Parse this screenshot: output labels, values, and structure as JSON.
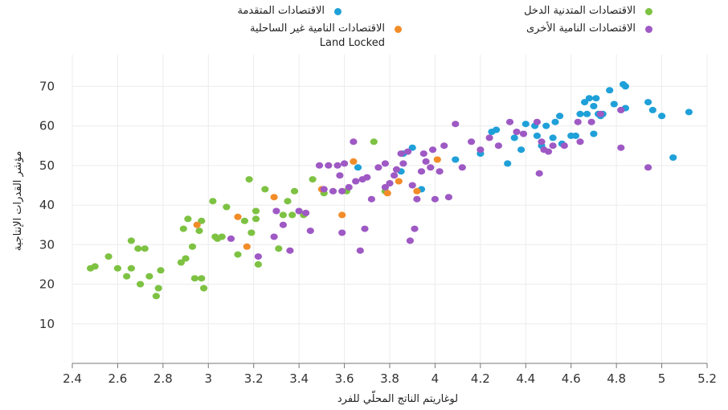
{
  "colors": {
    "advanced": "#1fa0d8",
    "lowincome": "#7dc242",
    "landlocked": "#f28c28",
    "other": "#9e59c4"
  },
  "legend": [
    {
      "key": "advanced",
      "label": "الاقتصادات المتقدمة",
      "color": "#1fa0d8"
    },
    {
      "key": "lowincome",
      "label": "الاقتصادات المتدنية الدخل",
      "color": "#7dc242"
    },
    {
      "key": "landlocked",
      "label": "الاقتصادات النامية غير الساحلية\nLand Locked",
      "color": "#f28c28"
    },
    {
      "key": "other",
      "label": "الاقتصادات النامية الأخرى",
      "color": "#9e59c4"
    }
  ],
  "chart_data": {
    "type": "scatter",
    "xlabel": "لوغاريتم الناتج المحلّي للفرد",
    "ylabel": "مؤشر القدرات الإنتاجية",
    "xlim": [
      2.4,
      5.2
    ],
    "ylim": [
      0,
      78
    ],
    "xticks": [
      "2.4",
      "2.6",
      "2.8",
      "3",
      "3.2",
      "3.4",
      "3.6",
      "3.8",
      "4",
      "4.2",
      "4.4",
      "4.6",
      "4.8",
      "5",
      "5.2"
    ],
    "yticks": [
      "10",
      "20",
      "30",
      "40",
      "50",
      "60",
      "70"
    ],
    "grid": true,
    "series": [
      {
        "name": "الاقتصادات المتقدمة",
        "key": "advanced",
        "points": [
          [
            3.66,
            49.5
          ],
          [
            3.85,
            48.5
          ],
          [
            3.86,
            53
          ],
          [
            3.9,
            54.5
          ],
          [
            3.94,
            44
          ],
          [
            4.09,
            51.5
          ],
          [
            4.2,
            53
          ],
          [
            4.25,
            58.5
          ],
          [
            4.27,
            59
          ],
          [
            4.32,
            50.5
          ],
          [
            4.35,
            57
          ],
          [
            4.38,
            54
          ],
          [
            4.4,
            60.5
          ],
          [
            4.44,
            60
          ],
          [
            4.45,
            57.5
          ],
          [
            4.47,
            55
          ],
          [
            4.49,
            60
          ],
          [
            4.52,
            57
          ],
          [
            4.53,
            61
          ],
          [
            4.55,
            62.5
          ],
          [
            4.56,
            55.5
          ],
          [
            4.6,
            57.5
          ],
          [
            4.62,
            57.5
          ],
          [
            4.64,
            63
          ],
          [
            4.66,
            66
          ],
          [
            4.67,
            63
          ],
          [
            4.68,
            67
          ],
          [
            4.7,
            58
          ],
          [
            4.7,
            65
          ],
          [
            4.71,
            67
          ],
          [
            4.72,
            63
          ],
          [
            4.73,
            62.5
          ],
          [
            4.74,
            63
          ],
          [
            4.77,
            69
          ],
          [
            4.79,
            65.5
          ],
          [
            4.82,
            64
          ],
          [
            4.83,
            70.5
          ],
          [
            4.84,
            70
          ],
          [
            4.84,
            64.5
          ],
          [
            4.94,
            66
          ],
          [
            4.96,
            64
          ],
          [
            5.0,
            62.5
          ],
          [
            5.05,
            52
          ],
          [
            5.12,
            63.5
          ]
        ]
      },
      {
        "name": "الاقتصادات المتدنية الدخل",
        "key": "lowincome",
        "points": [
          [
            2.48,
            24
          ],
          [
            2.5,
            24.5
          ],
          [
            2.56,
            27
          ],
          [
            2.6,
            24
          ],
          [
            2.64,
            22
          ],
          [
            2.66,
            24
          ],
          [
            2.66,
            31
          ],
          [
            2.69,
            29
          ],
          [
            2.7,
            20
          ],
          [
            2.72,
            29
          ],
          [
            2.74,
            22
          ],
          [
            2.77,
            17
          ],
          [
            2.78,
            19
          ],
          [
            2.79,
            23.5
          ],
          [
            2.88,
            25.5
          ],
          [
            2.89,
            34
          ],
          [
            2.9,
            26.5
          ],
          [
            2.91,
            36.5
          ],
          [
            2.93,
            29.5
          ],
          [
            2.94,
            21.5
          ],
          [
            2.96,
            33.5
          ],
          [
            2.97,
            36
          ],
          [
            2.97,
            21.5
          ],
          [
            2.98,
            19
          ],
          [
            3.02,
            41
          ],
          [
            3.03,
            32
          ],
          [
            3.04,
            31.5
          ],
          [
            3.06,
            32
          ],
          [
            3.08,
            39.5
          ],
          [
            3.13,
            27.5
          ],
          [
            3.16,
            36
          ],
          [
            3.18,
            46.5
          ],
          [
            3.19,
            33
          ],
          [
            3.21,
            38.5
          ],
          [
            3.21,
            36.5
          ],
          [
            3.22,
            25
          ],
          [
            3.25,
            44
          ],
          [
            3.31,
            29
          ],
          [
            3.33,
            37.5
          ],
          [
            3.35,
            41
          ],
          [
            3.37,
            37.5
          ],
          [
            3.38,
            43.5
          ],
          [
            3.42,
            37.5
          ],
          [
            3.46,
            46.5
          ],
          [
            3.51,
            43
          ],
          [
            3.61,
            43.5
          ],
          [
            3.73,
            56
          ],
          [
            3.78,
            43.5
          ]
        ]
      },
      {
        "name": "الاقتصادات النامية غير الساحلية",
        "key": "landlocked",
        "points": [
          [
            2.95,
            35
          ],
          [
            3.13,
            37
          ],
          [
            3.17,
            29.5
          ],
          [
            3.29,
            42
          ],
          [
            3.5,
            44
          ],
          [
            3.59,
            37.5
          ],
          [
            3.64,
            51
          ],
          [
            3.79,
            43
          ],
          [
            3.84,
            46
          ],
          [
            3.92,
            43.5
          ],
          [
            4.01,
            51.5
          ]
        ]
      },
      {
        "name": "الاقتصادات النامية الأخرى",
        "key": "other",
        "points": [
          [
            3.1,
            31.5
          ],
          [
            3.22,
            27
          ],
          [
            3.29,
            32
          ],
          [
            3.3,
            38.5
          ],
          [
            3.33,
            35
          ],
          [
            3.36,
            28.5
          ],
          [
            3.4,
            38.5
          ],
          [
            3.43,
            38
          ],
          [
            3.45,
            33.5
          ],
          [
            3.49,
            50
          ],
          [
            3.51,
            44
          ],
          [
            3.53,
            50
          ],
          [
            3.55,
            43.5
          ],
          [
            3.57,
            50
          ],
          [
            3.58,
            47.5
          ],
          [
            3.59,
            43.5
          ],
          [
            3.6,
            50.5
          ],
          [
            3.59,
            33
          ],
          [
            3.62,
            44.5
          ],
          [
            3.64,
            56
          ],
          [
            3.65,
            46
          ],
          [
            3.67,
            28.5
          ],
          [
            3.68,
            46.5
          ],
          [
            3.69,
            34
          ],
          [
            3.7,
            47
          ],
          [
            3.72,
            41.5
          ],
          [
            3.75,
            49.5
          ],
          [
            3.78,
            44.5
          ],
          [
            3.78,
            50.5
          ],
          [
            3.8,
            45.5
          ],
          [
            3.82,
            47.5
          ],
          [
            3.83,
            49
          ],
          [
            3.85,
            53
          ],
          [
            3.86,
            50.5
          ],
          [
            3.88,
            53.5
          ],
          [
            3.89,
            31
          ],
          [
            3.9,
            45
          ],
          [
            3.91,
            34
          ],
          [
            3.92,
            41.5
          ],
          [
            3.94,
            48.5
          ],
          [
            3.95,
            53
          ],
          [
            3.96,
            51
          ],
          [
            3.98,
            49.5
          ],
          [
            3.99,
            54
          ],
          [
            4.0,
            41.5
          ],
          [
            4.02,
            48.5
          ],
          [
            4.04,
            55
          ],
          [
            4.06,
            42
          ],
          [
            4.09,
            60.5
          ],
          [
            4.12,
            49.5
          ],
          [
            4.16,
            56
          ],
          [
            4.2,
            54
          ],
          [
            4.24,
            57
          ],
          [
            4.28,
            55
          ],
          [
            4.33,
            61
          ],
          [
            4.36,
            58.5
          ],
          [
            4.39,
            58
          ],
          [
            4.45,
            61
          ],
          [
            4.46,
            48
          ],
          [
            4.47,
            56
          ],
          [
            4.48,
            54
          ],
          [
            4.5,
            53.5
          ],
          [
            4.52,
            55
          ],
          [
            4.57,
            55
          ],
          [
            4.63,
            61
          ],
          [
            4.64,
            56
          ],
          [
            4.69,
            61
          ],
          [
            4.73,
            63
          ],
          [
            4.82,
            54.5
          ],
          [
            4.82,
            64
          ],
          [
            4.94,
            49.5
          ]
        ]
      }
    ]
  }
}
